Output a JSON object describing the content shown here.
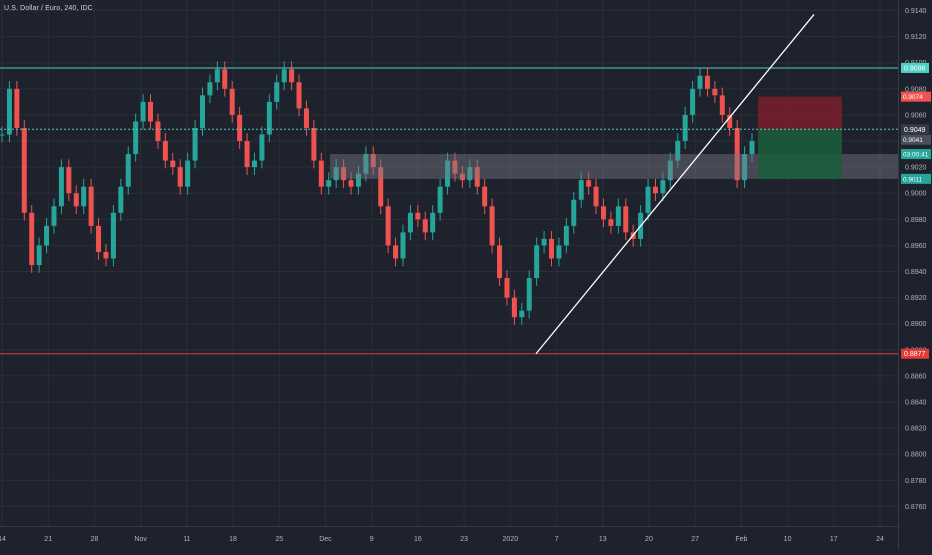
{
  "title": "U.S. Dollar / Euro, 240, IDC",
  "colors": {
    "background": "#1e222d",
    "grid": "#2a2e39",
    "up": "#26a69a",
    "down": "#ef5350",
    "axis_text": "#b2b5be",
    "resistance_line": "#4dd0c6",
    "support_line": "#e53935",
    "trendline": "#ffffff",
    "zone_fill": "#787b86",
    "stop_fill": "#7a1f2a",
    "target_fill": "#1b5e3b"
  },
  "chart_data": {
    "type": "candlestick",
    "title": "U.S. Dollar / Euro, 240, IDC",
    "ylim": [
      0.8745,
      0.9145
    ],
    "y_ticks": [
      "0.9140",
      "0.9120",
      "0.9100",
      "0.9080",
      "0.9060",
      "0.9040",
      "0.9020",
      "0.9000",
      "0.8980",
      "0.8960",
      "0.8940",
      "0.8920",
      "0.8900",
      "0.8880",
      "0.8860",
      "0.8840",
      "0.8820",
      "0.8800",
      "0.8780",
      "0.8760"
    ],
    "x_ticks": [
      "14",
      "21",
      "28",
      "Nov",
      "11",
      "18",
      "25",
      "Dec",
      "9",
      "16",
      "23",
      "2020",
      "7",
      "13",
      "20",
      "27",
      "Feb",
      "10",
      "17",
      "24"
    ],
    "grid": true,
    "series": [
      {
        "values": [
          0.9045,
          0.908,
          0.905,
          0.8985,
          0.8945,
          0.896,
          0.8975,
          0.899,
          0.902,
          0.9,
          0.899,
          0.9005,
          0.8975,
          0.8955,
          0.895,
          0.8985,
          0.9005,
          0.903,
          0.9055,
          0.907,
          0.9055,
          0.904,
          0.9025,
          0.902,
          0.9005,
          0.9025,
          0.905,
          0.9075,
          0.9085,
          0.9095,
          0.908,
          0.906,
          0.904,
          0.902,
          0.9025,
          0.9045,
          0.907,
          0.9085,
          0.9095,
          0.9085,
          0.9065,
          0.905,
          0.9025,
          0.9005,
          0.901,
          0.902,
          0.901,
          0.9005,
          0.9015,
          0.903,
          0.902,
          0.899,
          0.896,
          0.895,
          0.897,
          0.8985,
          0.898,
          0.897,
          0.8985,
          0.9005,
          0.9025,
          0.9015,
          0.901,
          0.902,
          0.9005,
          0.899,
          0.896,
          0.8935,
          0.892,
          0.8905,
          0.891,
          0.8935,
          0.896,
          0.8965,
          0.895,
          0.896,
          0.8975,
          0.8995,
          0.901,
          0.9005,
          0.899,
          0.898,
          0.8975,
          0.899,
          0.897,
          0.8965,
          0.8985,
          0.9005,
          0.9,
          0.901,
          0.9025,
          0.904,
          0.906,
          0.908,
          0.909,
          0.908,
          0.9075,
          0.906,
          0.905,
          0.901,
          0.903,
          0.904
        ]
      }
    ],
    "horizontal_lines": [
      {
        "value": 0.9096,
        "label": "0.9096"
      },
      {
        "value": 0.9049,
        "label": "0.9049"
      },
      {
        "value": 0.8877,
        "label": "0.8877"
      }
    ],
    "price_labels": [
      {
        "value": 0.9074,
        "label": "0.9074"
      },
      {
        "value": 0.9041,
        "label": "0.9041"
      },
      {
        "value": 0.903,
        "label": "03:00:41"
      },
      {
        "value": 0.9011,
        "label": "0.9011"
      }
    ],
    "zone": {
      "from": 0.9011,
      "to": 0.903
    },
    "trendline": {
      "from_value": 0.8877,
      "to_value": 0.9137
    },
    "position": {
      "entry": 0.9049,
      "stop": 0.9074,
      "target": 0.9011
    }
  }
}
